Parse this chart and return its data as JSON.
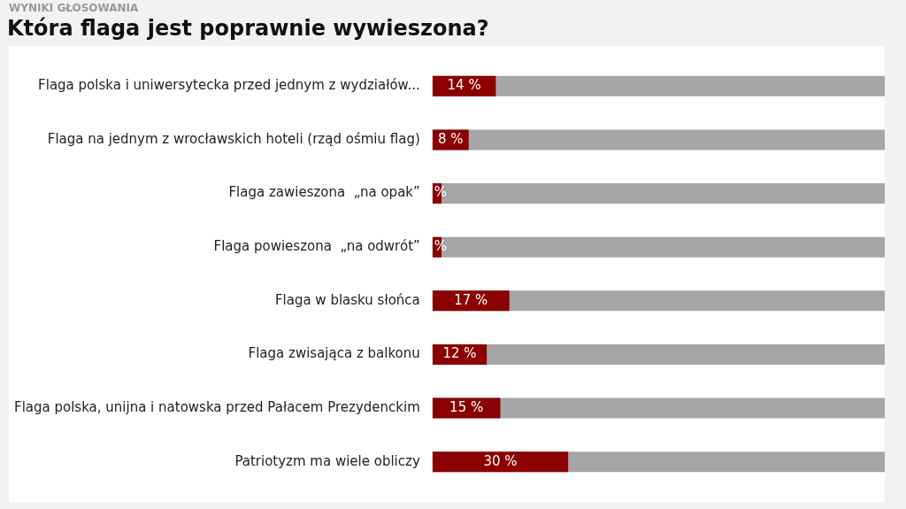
{
  "chart_data": {
    "type": "bar",
    "orientation": "horizontal",
    "subtitle": "WYNIKI GŁOSOWANIA",
    "title": "Która flaga jest poprawnie wywieszona?",
    "categories": [
      "Flaga polska i uniwersytecka przed jednym z wydziałów...",
      "Flaga na jednym z wrocławskich hoteli (rząd ośmiu flag)",
      "Flaga zawieszona  „na opak”",
      "Flaga powieszona  „na odwrót”",
      "Flaga w blasku słońca",
      "Flaga zwisająca z balkonu",
      "Flaga polska, unijna i natowska przed Pałacem Prezydenckim",
      "Patriotyzm ma wiele obliczy"
    ],
    "values": [
      14,
      8,
      2,
      2,
      17,
      12,
      15,
      30
    ],
    "value_labels": [
      "14 %",
      "8 %",
      "%",
      "%",
      "17 %",
      "12 %",
      "15 %",
      "30 %"
    ],
    "color": "#8b0000",
    "xlim": [
      0,
      100
    ],
    "tick_labels": "y"
  }
}
